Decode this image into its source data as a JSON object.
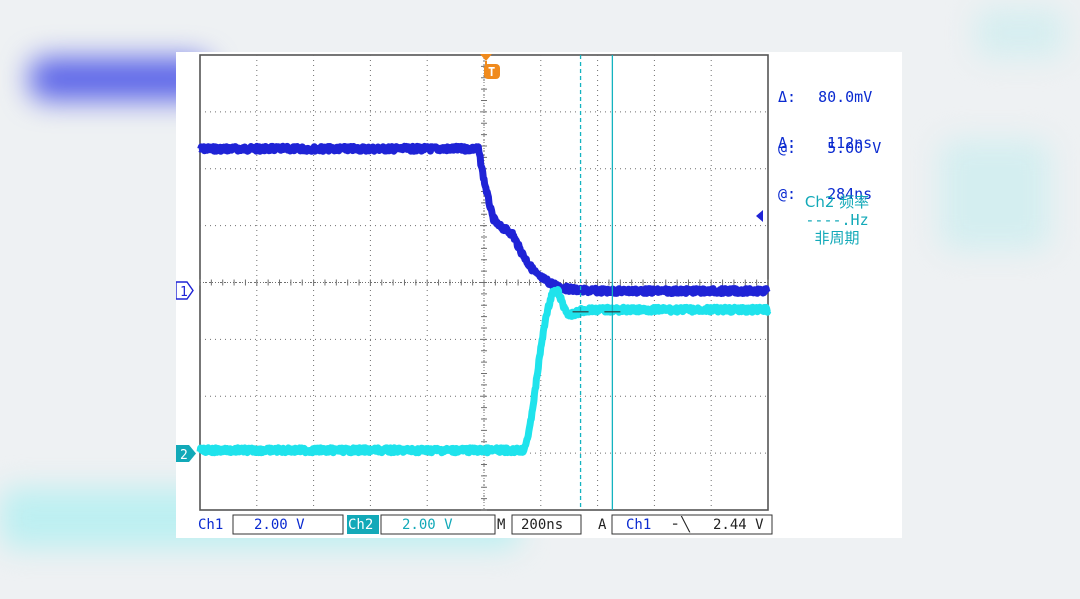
{
  "colors": {
    "ch1": "#1f23d6",
    "ch2": "#1fe3ec",
    "cursor": "#14b3c0",
    "label_blue": "#0a2ad0",
    "label_cyan": "#12a9b8",
    "trigger": "#f08a1c",
    "grid": "#6f6f6f"
  },
  "chart_data": {
    "type": "line",
    "title": "",
    "x_range_ns": [
      -1140,
      860
    ],
    "y_range_div": [
      -4,
      4
    ],
    "grid": true,
    "series": [
      {
        "name": "Ch1",
        "volts_per_div": "2.00 V",
        "x_ns": [
          -1140,
          -160,
          -140,
          -110,
          -90,
          -70,
          -40,
          -10,
          20,
          50,
          80,
          110,
          140,
          200,
          300,
          860
        ],
        "y_div": [
          2.35,
          2.35,
          1.8,
          1.15,
          1.0,
          0.95,
          0.85,
          0.55,
          0.3,
          0.12,
          0.03,
          -0.05,
          -0.1,
          -0.14,
          -0.15,
          -0.15
        ]
      },
      {
        "name": "Ch2",
        "volts_per_div": "2.00 V",
        "x_ns": [
          -1140,
          0,
          20,
          40,
          60,
          80,
          100,
          120,
          140,
          160,
          180,
          200,
          230,
          300,
          860
        ],
        "y_div": [
          -2.95,
          -2.95,
          -2.6,
          -1.9,
          -1.15,
          -0.55,
          -0.2,
          -0.15,
          -0.42,
          -0.58,
          -0.55,
          -0.5,
          -0.48,
          -0.48,
          -0.48
        ]
      }
    ],
    "cursors": {
      "x1_ns": 200,
      "x2_ns": 312
    }
  },
  "readout": {
    "v_delta_label": "Δ:",
    "v_delta": "80.0mV",
    "v_at_label": "@:",
    "v_at": "5.00 V",
    "t_delta_label": "Δ:",
    "t_delta": "112ns",
    "t_at_label": "@:",
    "t_at": "284ns"
  },
  "measure": {
    "title": "Ch2 频率",
    "value": "----.Hz",
    "note": "非周期"
  },
  "markers": {
    "ch1": "1",
    "ch2": "2",
    "trigger": "T"
  },
  "status": {
    "ch1_label": "Ch1",
    "ch1_scale": "2.00 V",
    "ch2_label": "Ch2",
    "ch2_scale": "2.00 V",
    "m_label": "M",
    "timebase": "200ns",
    "a_label": "A",
    "trig_source": "Ch1",
    "trig_slope": "╴╲",
    "trig_level": "2.44 V"
  }
}
